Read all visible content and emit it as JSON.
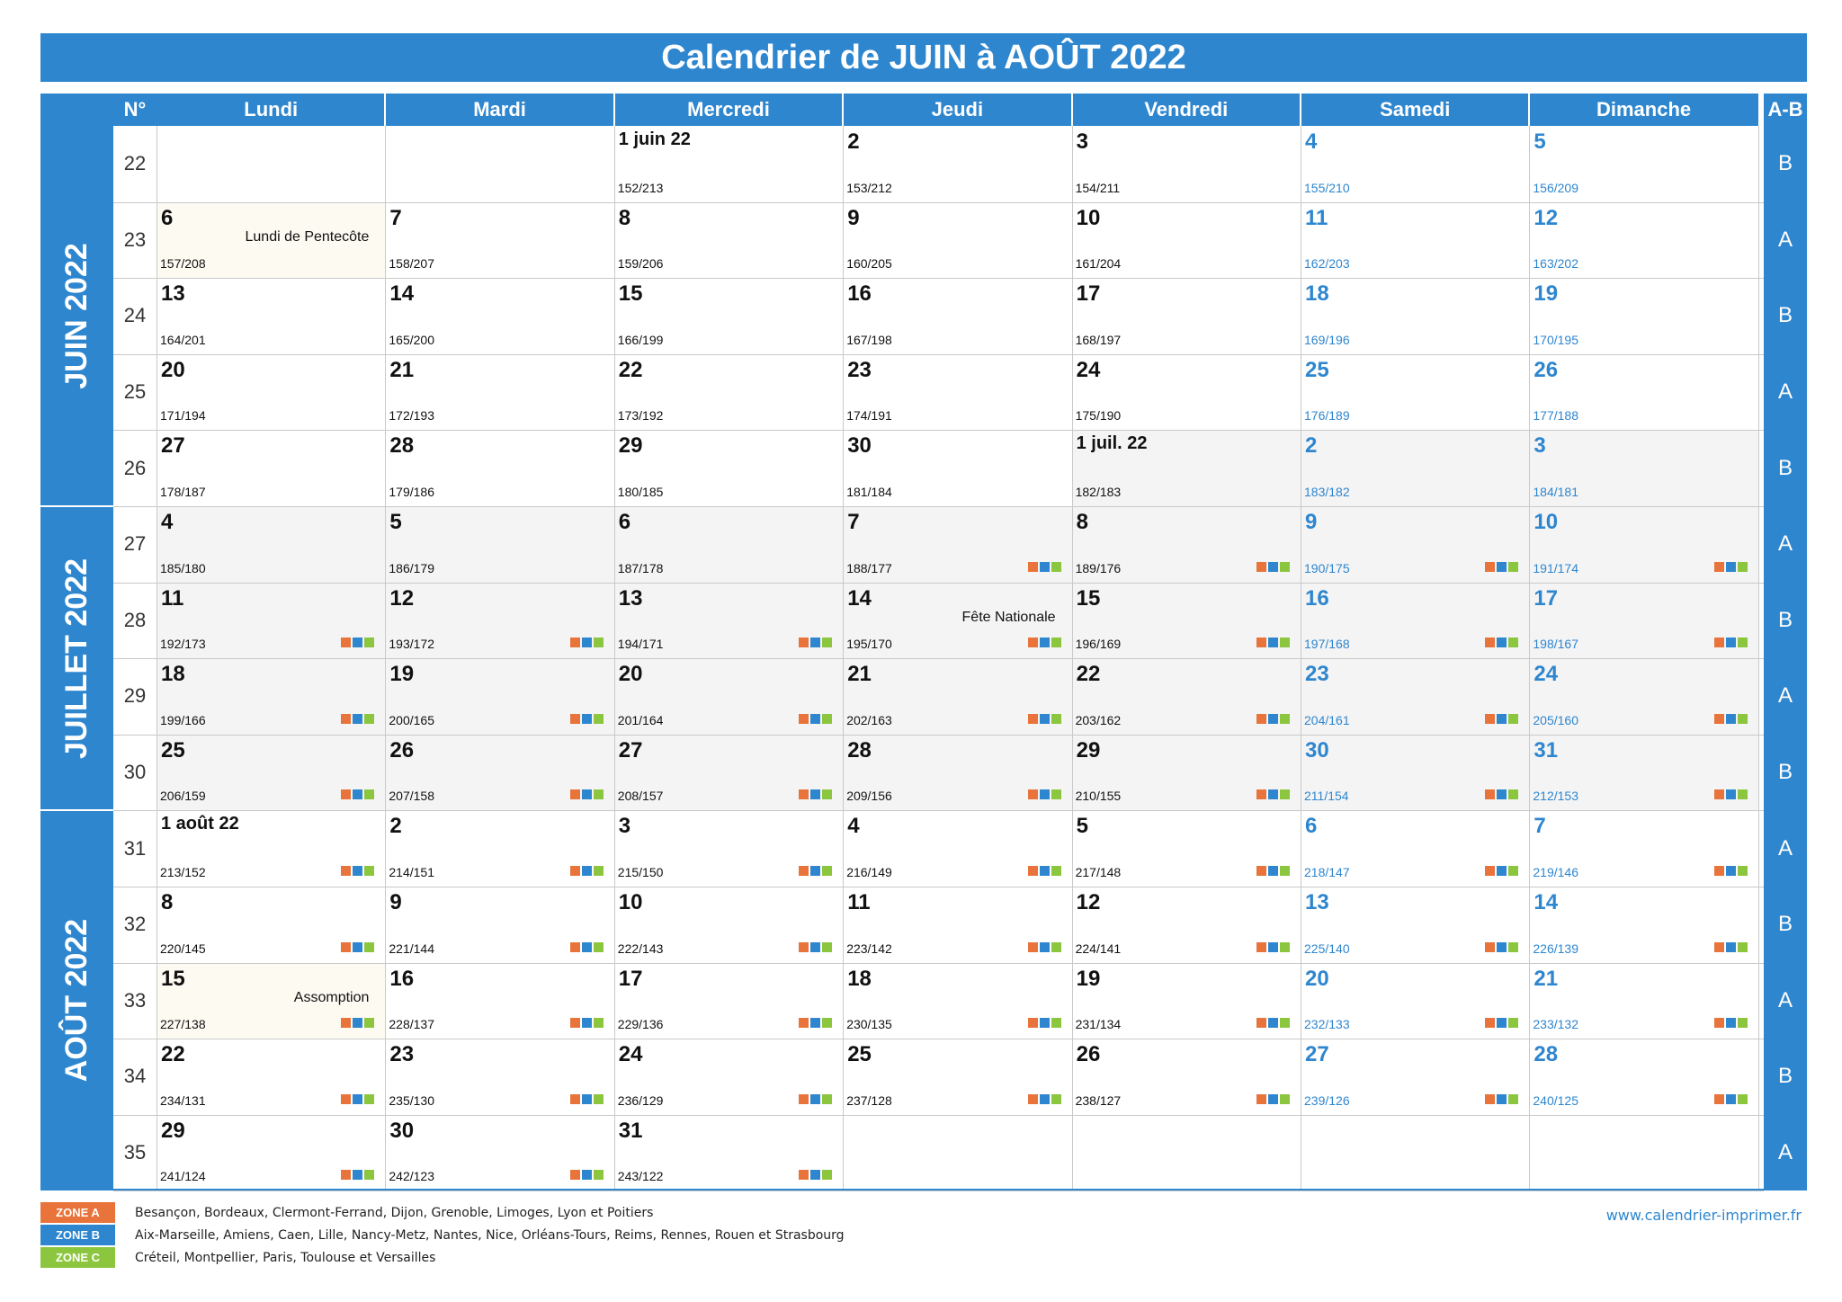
{
  "title": "Calendrier de JUIN à AOÛT 2022",
  "headers": {
    "week": "N°",
    "ab": "A-B",
    "days": [
      "Lundi",
      "Mardi",
      "Mercredi",
      "Jeudi",
      "Vendredi",
      "Samedi",
      "Dimanche"
    ]
  },
  "months": [
    {
      "label": "JUIN 2022",
      "first_week": 0,
      "weeks": 5
    },
    {
      "label": "JUILLET 2022",
      "first_week": 5,
      "weeks": 4
    },
    {
      "label": "AOÛT 2022",
      "first_week": 9,
      "weeks": 5
    }
  ],
  "colors": {
    "accent": "#2e86cf",
    "zone_a": "#e8743b",
    "zone_b": "#2e86cf",
    "zone_c": "#8cc63f"
  },
  "start_week": 22,
  "ab": [
    "B",
    "A",
    "B",
    "A",
    "B",
    "A",
    "B",
    "A",
    "B",
    "A",
    "B",
    "A",
    "B",
    "A"
  ],
  "holidays": [
    {
      "date": "2022-06-06",
      "label": "Lundi de Pentecôte"
    },
    {
      "date": "2022-07-14",
      "label": "Fête Nationale"
    },
    {
      "date": "2022-08-15",
      "label": "Assomption"
    }
  ],
  "first_day_labels": {
    "2022-06-01": "1 juin 22",
    "2022-07-01": "1 juil. 22",
    "2022-08-01": "1 août 22"
  },
  "date_range": {
    "from": "2022-06-01",
    "to": "2022-08-31"
  },
  "school_holidays": {
    "from": "2022-07-07",
    "to": "2022-08-31"
  },
  "legend": [
    {
      "zone": "ZONE A",
      "color": "#e8743b",
      "text": "Besançon, Bordeaux, Clermont-Ferrand, Dijon, Grenoble, Limoges, Lyon et Poitiers"
    },
    {
      "zone": "ZONE B",
      "color": "#2e86cf",
      "text": "Aix-Marseille, Amiens, Caen, Lille, Nancy-Metz, Nantes, Nice, Orléans-Tours, Reims, Rennes, Rouen et Strasbourg"
    },
    {
      "zone": "ZONE C",
      "color": "#8cc63f",
      "text": "Créteil, Montpellier, Paris, Toulouse et Versailles"
    }
  ],
  "website": "www.calendrier-imprimer.fr"
}
